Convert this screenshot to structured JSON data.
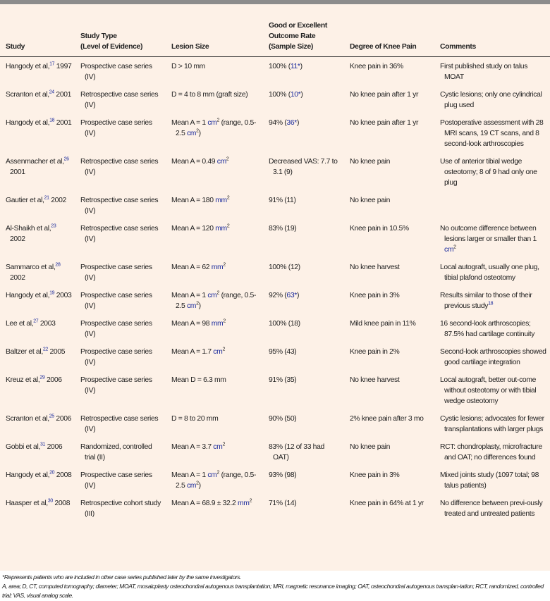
{
  "headers": [
    "Study",
    "Study Type\n(Level of Evidence)",
    "Lesion Size",
    "Good or Excellent\nOutcome Rate\n(Sample Size)",
    "Degree of Knee Pain",
    "Comments"
  ],
  "colors": {
    "background": "#fdf1e7",
    "reference_link": "#1a2a9c",
    "top_bar": "#8c8c8c"
  },
  "rows": [
    [
      [
        {
          "t": "Hangody et al,"
        },
        {
          "sup": "17",
          "ref": true
        },
        {
          "t": " 1997"
        }
      ],
      [
        {
          "t": "Prospective case series (IV)"
        }
      ],
      [
        {
          "t": "D > 10 mm"
        }
      ],
      [
        {
          "t": "100% ("
        },
        {
          "r": "11*"
        },
        {
          "t": ")"
        }
      ],
      [
        {
          "t": "Knee pain in 36%"
        }
      ],
      [
        {
          "t": "First published study on talus MOAT"
        }
      ]
    ],
    [
      [
        {
          "t": "Scranton et al,"
        },
        {
          "sup": "24",
          "ref": true
        },
        {
          "t": " 2001"
        }
      ],
      [
        {
          "t": "Retrospective case series (IV)"
        }
      ],
      [
        {
          "t": "D = 4 to 8 mm (graft size)"
        }
      ],
      [
        {
          "t": "100% ("
        },
        {
          "r": "10*"
        },
        {
          "t": ")"
        }
      ],
      [
        {
          "t": "No knee pain after 1 yr"
        }
      ],
      [
        {
          "t": "Cystic lesions; only one cylindrical plug used"
        }
      ]
    ],
    [
      [
        {
          "t": "Hangody et al,"
        },
        {
          "sup": "18",
          "ref": true
        },
        {
          "t": " 2001"
        }
      ],
      [
        {
          "t": "Prospective case series (IV)"
        }
      ],
      [
        {
          "t": "Mean A = 1 "
        },
        {
          "r": "cm"
        },
        {
          "sup": "2"
        },
        {
          "t": " (range, 0.5-2.5 "
        },
        {
          "r": "cm"
        },
        {
          "sup": "2"
        },
        {
          "t": ")"
        }
      ],
      [
        {
          "t": "94% ("
        },
        {
          "r": "36*"
        },
        {
          "t": ")"
        }
      ],
      [
        {
          "t": "No knee pain after 1 yr"
        }
      ],
      [
        {
          "t": "Postoperative assessment with 28 MRI scans, 19 CT scans, and 8 second-look arthroscopies"
        }
      ]
    ],
    [
      [
        {
          "t": "Assenmacher et al,"
        },
        {
          "sup": "26",
          "ref": true
        },
        {
          "t": " 2001"
        }
      ],
      [
        {
          "t": "Retrospective case series (IV)"
        }
      ],
      [
        {
          "t": "Mean A = 0.49 "
        },
        {
          "r": "cm"
        },
        {
          "sup": "2"
        }
      ],
      [
        {
          "t": "Decreased VAS: 7.7 to 3.1 (9)"
        }
      ],
      [
        {
          "t": "No knee pain"
        }
      ],
      [
        {
          "t": "Use of anterior tibial wedge osteotomy; 8 of 9 had only one plug"
        }
      ]
    ],
    [
      [
        {
          "t": "Gautier et al,"
        },
        {
          "sup": "21",
          "ref": true
        },
        {
          "t": " 2002"
        }
      ],
      [
        {
          "t": "Retrospective case series (IV)"
        }
      ],
      [
        {
          "t": "Mean A = 180 "
        },
        {
          "r": "mm"
        },
        {
          "sup": "2"
        }
      ],
      [
        {
          "t": "91% (11)"
        }
      ],
      [
        {
          "t": "No knee pain"
        }
      ],
      []
    ],
    [
      [
        {
          "t": "Al-Shaikh et al,"
        },
        {
          "sup": "23",
          "ref": true
        },
        {
          "t": " 2002"
        }
      ],
      [
        {
          "t": "Retrospective case series (IV)"
        }
      ],
      [
        {
          "t": "Mean A = 120 "
        },
        {
          "r": "mm"
        },
        {
          "sup": "2"
        }
      ],
      [
        {
          "t": "83% (19)"
        }
      ],
      [
        {
          "t": "Knee pain in 10.5%"
        }
      ],
      [
        {
          "t": "No outcome difference between lesions larger or smaller than 1 "
        },
        {
          "r": "cm"
        },
        {
          "sup": "2"
        }
      ]
    ],
    [
      [
        {
          "t": "Sammarco et al,"
        },
        {
          "sup": "28",
          "ref": true
        },
        {
          "t": " 2002"
        }
      ],
      [
        {
          "t": "Prospective case series (IV)"
        }
      ],
      [
        {
          "t": "Mean A = 62 "
        },
        {
          "r": "mm"
        },
        {
          "sup": "2"
        }
      ],
      [
        {
          "t": "100% (12)"
        }
      ],
      [
        {
          "t": "No knee harvest"
        }
      ],
      [
        {
          "t": "Local autograft, usually one plug, tibial plafond osteotomy"
        }
      ]
    ],
    [
      [
        {
          "t": "Hangody et al,"
        },
        {
          "sup": "19",
          "ref": true
        },
        {
          "t": " 2003"
        }
      ],
      [
        {
          "t": "Prospective case series (IV)"
        }
      ],
      [
        {
          "t": "Mean A = 1 "
        },
        {
          "r": "cm"
        },
        {
          "sup": "2"
        },
        {
          "t": " (range, 0.5-2.5 "
        },
        {
          "r": "cm"
        },
        {
          "sup": "2"
        },
        {
          "t": ")"
        }
      ],
      [
        {
          "t": "92% ("
        },
        {
          "r": "63*"
        },
        {
          "t": ")"
        }
      ],
      [
        {
          "t": "Knee pain in 3%"
        }
      ],
      [
        {
          "t": "Results similar to those of their previous study"
        },
        {
          "sup": "18",
          "ref": true
        }
      ]
    ],
    [
      [
        {
          "t": "Lee et al,"
        },
        {
          "sup": "27",
          "ref": true
        },
        {
          "t": " 2003"
        }
      ],
      [
        {
          "t": "Prospective case series (IV)"
        }
      ],
      [
        {
          "t": "Mean A = 98 "
        },
        {
          "r": "mm"
        },
        {
          "sup": "2"
        }
      ],
      [
        {
          "t": "100% (18)"
        }
      ],
      [
        {
          "t": "Mild knee pain in 11%"
        }
      ],
      [
        {
          "t": "16 second-look arthroscopies; 87.5% had cartilage continuity"
        }
      ]
    ],
    [
      [
        {
          "t": "Baltzer et al,"
        },
        {
          "sup": "22",
          "ref": true
        },
        {
          "t": " 2005"
        }
      ],
      [
        {
          "t": "Prospective case series (IV)"
        }
      ],
      [
        {
          "t": "Mean A = 1.7 "
        },
        {
          "r": "cm"
        },
        {
          "sup": "2"
        }
      ],
      [
        {
          "t": "95% (43)"
        }
      ],
      [
        {
          "t": "Knee pain in 2%"
        }
      ],
      [
        {
          "t": "Second-look arthroscopies showed good cartilage integration"
        }
      ]
    ],
    [
      [
        {
          "t": "Kreuz et al,"
        },
        {
          "sup": "29",
          "ref": true
        },
        {
          "t": " 2006"
        }
      ],
      [
        {
          "t": "Prospective case series (IV)"
        }
      ],
      [
        {
          "t": "Mean D = 6.3 mm"
        }
      ],
      [
        {
          "t": "91% (35)"
        }
      ],
      [
        {
          "t": "No knee harvest"
        }
      ],
      [
        {
          "t": "Local autograft, better out-come without osteotomy or with tibial wedge osteotomy"
        }
      ]
    ],
    [
      [
        {
          "t": "Scranton et al,"
        },
        {
          "sup": "25",
          "ref": true
        },
        {
          "t": " 2006"
        }
      ],
      [
        {
          "t": "Retrospective case series (IV)"
        }
      ],
      [
        {
          "t": "D = 8 to 20 mm"
        }
      ],
      [
        {
          "t": "90% (50)"
        }
      ],
      [
        {
          "t": "2% knee pain after 3 mo"
        }
      ],
      [
        {
          "t": "Cystic lesions; advocates for fewer transplantations with larger plugs"
        }
      ]
    ],
    [
      [
        {
          "t": "Gobbi et al,"
        },
        {
          "sup": "31",
          "ref": true
        },
        {
          "t": " 2006"
        }
      ],
      [
        {
          "t": "Randomized, controlled trial (II)"
        }
      ],
      [
        {
          "t": "Mean A = 3.7 "
        },
        {
          "r": "cm"
        },
        {
          "sup": "2"
        }
      ],
      [
        {
          "t": "83% (12 of 33 had OAT)"
        }
      ],
      [
        {
          "t": "No knee pain"
        }
      ],
      [
        {
          "t": "RCT: chondroplasty, microfracture and OAT; no differences found"
        }
      ]
    ],
    [
      [
        {
          "t": "Hangody et al,"
        },
        {
          "sup": "20",
          "ref": true
        },
        {
          "t": " 2008"
        }
      ],
      [
        {
          "t": "Prospective case series (IV)"
        }
      ],
      [
        {
          "t": "Mean A = 1 "
        },
        {
          "r": "cm"
        },
        {
          "sup": "2"
        },
        {
          "t": " (range, 0.5-2.5 "
        },
        {
          "r": "cm"
        },
        {
          "sup": "2"
        },
        {
          "t": ")"
        }
      ],
      [
        {
          "t": "93% (98)"
        }
      ],
      [
        {
          "t": "Knee pain in 3%"
        }
      ],
      [
        {
          "t": "Mixed joints study (1097 total; 98 talus patients)"
        }
      ]
    ],
    [
      [
        {
          "t": "Haasper et al,"
        },
        {
          "sup": "30",
          "ref": true
        },
        {
          "t": " 2008"
        }
      ],
      [
        {
          "t": "Retrospective cohort study (III)"
        }
      ],
      [
        {
          "t": "Mean A = 68.9 ± 32.2 "
        },
        {
          "r": "mm"
        },
        {
          "sup": "2"
        }
      ],
      [
        {
          "t": "71% (14)"
        }
      ],
      [
        {
          "t": "Knee pain in 64% at 1 yr"
        }
      ],
      [
        {
          "t": "No difference between previ-ously treated and untreated patients"
        }
      ]
    ]
  ],
  "footnotes": [
    "*Represents patients who are included in other case series published later by the same investigators.",
    "A, area; D, CT, computed tomography; diameter; MOAT, mosaicplasty osteochondral autogenous transplantation; MRI, magnetic resonance imaging; OAT, osteochondral autogenous transplan-tation; RCT, randomized, controlled trial; VAS, visual analog scale."
  ]
}
